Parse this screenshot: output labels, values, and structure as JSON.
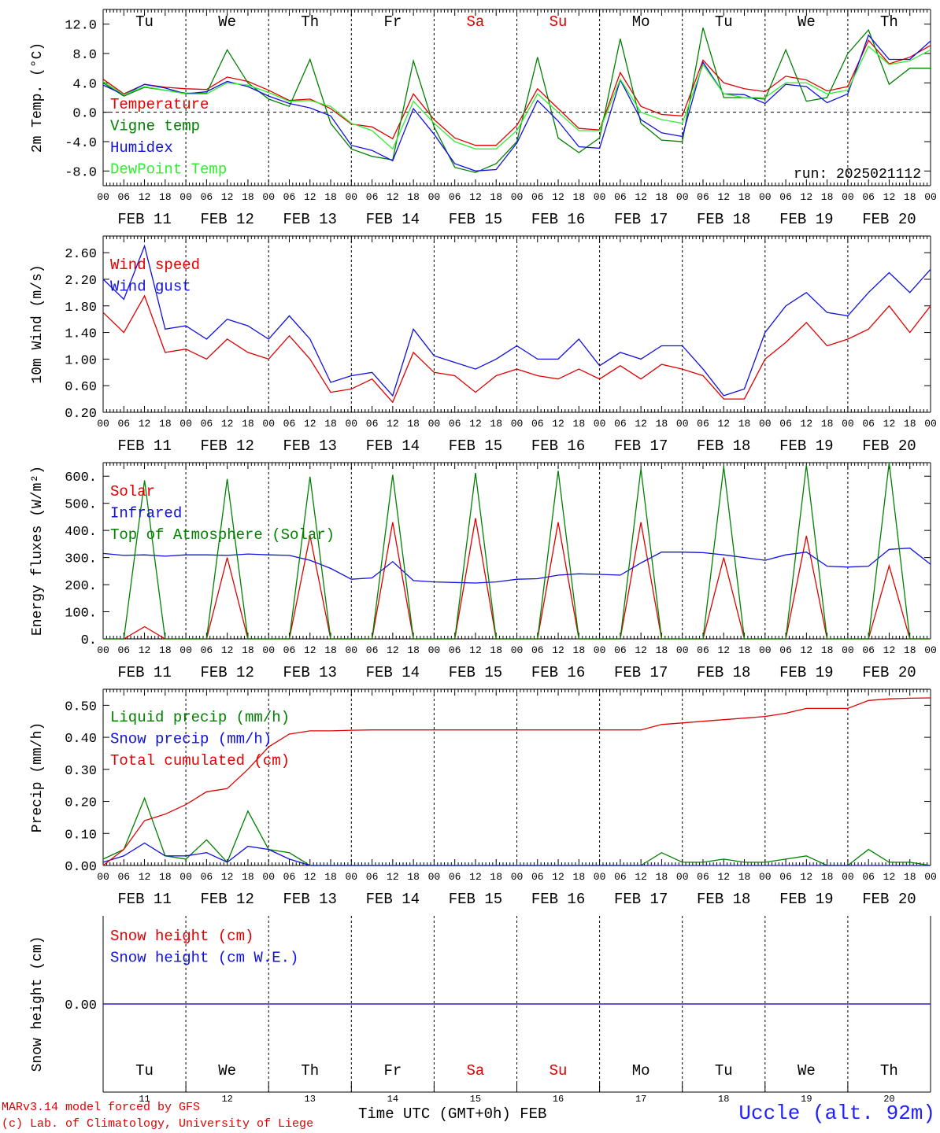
{
  "colors": {
    "red": "#e00000",
    "green": "#008000",
    "blue": "#1010e0",
    "light_green": "#30ee30",
    "black": "#000000",
    "station_blue": "#2020ff"
  },
  "run_label": "run: 2025021112",
  "weekdays": [
    {
      "label": "Tu",
      "weekend": false
    },
    {
      "label": "We",
      "weekend": false
    },
    {
      "label": "Th",
      "weekend": false
    },
    {
      "label": "Fr",
      "weekend": false
    },
    {
      "label": "Sa",
      "weekend": true
    },
    {
      "label": "Su",
      "weekend": true
    },
    {
      "label": "Mo",
      "weekend": false
    },
    {
      "label": "Tu",
      "weekend": false
    },
    {
      "label": "We",
      "weekend": false
    },
    {
      "label": "Th",
      "weekend": false
    }
  ],
  "hour_ticks": [
    "00",
    "06",
    "12",
    "18"
  ],
  "date_labels": [
    "FEB 11",
    "FEB 12",
    "FEB 13",
    "FEB 14",
    "FEB 15",
    "FEB 16",
    "FEB 17",
    "FEB 18",
    "FEB 19",
    "FEB 20"
  ],
  "day_numbers": [
    "11",
    "12",
    "13",
    "14",
    "15",
    "16",
    "17",
    "18",
    "19",
    "20"
  ],
  "footer": {
    "model_line": "MARv3.14 model forced by GFS",
    "copyright_line": "(c) Lab. of Climatology, University of Liege",
    "time_label": "Time UTC (GMT+0h) FEB",
    "station": "Uccle (alt. 92m)"
  },
  "chart_data": [
    {
      "type": "line",
      "ylabel": "2m Temp. (°C)",
      "ylim": [
        -10,
        14
      ],
      "yticks": [
        "12.0",
        "8.0",
        "4.0",
        "0.0",
        "-4.0",
        "-8.0"
      ],
      "ytick_values": [
        12,
        8,
        4,
        0,
        -4,
        -8
      ],
      "zero_line": true,
      "x_days": [
        0,
        0.25,
        0.5,
        0.75,
        1,
        1.25,
        1.5,
        1.75,
        2,
        2.25,
        2.5,
        2.75,
        3,
        3.25,
        3.5,
        3.75,
        4,
        4.25,
        4.5,
        4.75,
        5,
        5.25,
        5.5,
        5.75,
        6,
        6.25,
        6.5,
        6.75,
        7,
        7.25,
        7.5,
        7.75,
        8,
        8.25,
        8.5,
        8.75,
        9,
        9.25,
        9.5,
        9.75,
        10
      ],
      "series": [
        {
          "name": "Temperature",
          "color": "red",
          "values": [
            4.5,
            2.5,
            3.8,
            3.4,
            3.2,
            3.1,
            4.8,
            4.2,
            3.0,
            1.6,
            1.8,
            0.5,
            -1.6,
            -2.0,
            -3.6,
            2.5,
            -1.0,
            -3.5,
            -4.5,
            -4.5,
            -1.8,
            3.2,
            0.5,
            -2.2,
            -2.4,
            5.4,
            0.8,
            -0.3,
            -0.5,
            7.1,
            4.0,
            3.2,
            2.8,
            4.9,
            4.4,
            2.9,
            3.5,
            9.8,
            6.6,
            7.5,
            9.1
          ]
        },
        {
          "name": "Vigne temp",
          "color": "green",
          "values": [
            4.0,
            2.2,
            3.4,
            3.0,
            2.6,
            2.6,
            8.5,
            4.0,
            1.8,
            0.8,
            7.2,
            -1.5,
            -5.0,
            -6.0,
            -6.5,
            7.0,
            -2.0,
            -7.5,
            -8.2,
            -7.0,
            -4.0,
            7.5,
            -3.5,
            -5.5,
            -3.5,
            10.0,
            -1.5,
            -3.8,
            -4.0,
            11.5,
            2.0,
            2.0,
            1.8,
            8.5,
            1.5,
            2.0,
            8.0,
            11.2,
            3.8,
            6.0,
            6.0
          ]
        },
        {
          "name": "Humidex",
          "color": "blue",
          "values": [
            3.7,
            2.4,
            3.8,
            3.3,
            2.5,
            2.8,
            4.2,
            3.5,
            2.2,
            1.2,
            0.6,
            -0.5,
            -4.5,
            -5.2,
            -6.6,
            0.5,
            -3.0,
            -7.0,
            -8.0,
            -7.8,
            -4.2,
            1.6,
            -1.2,
            -4.7,
            -4.9,
            4.4,
            -1.0,
            -2.8,
            -3.3,
            6.8,
            2.5,
            2.4,
            1.2,
            3.8,
            3.5,
            1.3,
            2.5,
            10.5,
            7.2,
            7.2,
            9.7
          ]
        },
        {
          "name": "DewPoint Temp",
          "color": "light_green",
          "values": [
            4.2,
            2.4,
            3.5,
            3.0,
            2.5,
            2.5,
            4.0,
            3.7,
            2.7,
            1.5,
            1.6,
            0.8,
            -1.5,
            -2.5,
            -5.0,
            1.5,
            -1.5,
            -4.0,
            -5.0,
            -5.0,
            -2.5,
            2.5,
            0.0,
            -2.5,
            -2.5,
            4.5,
            0.0,
            -1.0,
            -1.5,
            6.5,
            2.5,
            2.0,
            2.0,
            4.0,
            4.0,
            2.5,
            3.0,
            9.0,
            6.5,
            7.0,
            8.5
          ]
        }
      ]
    },
    {
      "type": "line",
      "ylabel": "10m Wind (m/s)",
      "ylim": [
        0.2,
        2.85
      ],
      "yticks": [
        "2.60",
        "2.20",
        "1.80",
        "1.40",
        "1.00",
        "0.60",
        "0.20"
      ],
      "ytick_values": [
        2.6,
        2.2,
        1.8,
        1.4,
        1.0,
        0.6,
        0.2
      ],
      "x_days": [
        0,
        0.25,
        0.5,
        0.75,
        1,
        1.25,
        1.5,
        1.75,
        2,
        2.25,
        2.5,
        2.75,
        3,
        3.25,
        3.5,
        3.75,
        4,
        4.25,
        4.5,
        4.75,
        5,
        5.25,
        5.5,
        5.75,
        6,
        6.25,
        6.5,
        6.75,
        7,
        7.25,
        7.5,
        7.75,
        8,
        8.25,
        8.5,
        8.75,
        9,
        9.25,
        9.5,
        9.75,
        10
      ],
      "series": [
        {
          "name": "Wind speed",
          "color": "red",
          "values": [
            1.7,
            1.4,
            1.95,
            1.1,
            1.15,
            1.0,
            1.3,
            1.1,
            1.0,
            1.35,
            1.0,
            0.5,
            0.55,
            0.7,
            0.35,
            1.1,
            0.8,
            0.75,
            0.5,
            0.75,
            0.85,
            0.75,
            0.7,
            0.85,
            0.7,
            0.9,
            0.7,
            0.92,
            0.85,
            0.75,
            0.4,
            0.4,
            1.0,
            1.25,
            1.55,
            1.2,
            1.3,
            1.45,
            1.8,
            1.4,
            1.8
          ]
        },
        {
          "name": "Wind gust",
          "color": "blue",
          "values": [
            2.2,
            1.9,
            2.7,
            1.45,
            1.5,
            1.3,
            1.6,
            1.5,
            1.3,
            1.65,
            1.3,
            0.65,
            0.75,
            0.8,
            0.45,
            1.45,
            1.05,
            0.95,
            0.85,
            1.0,
            1.2,
            1.0,
            1.0,
            1.3,
            0.9,
            1.1,
            1.0,
            1.2,
            1.2,
            0.85,
            0.45,
            0.55,
            1.4,
            1.8,
            2.0,
            1.7,
            1.65,
            2.0,
            2.3,
            2.0,
            2.35
          ]
        }
      ]
    },
    {
      "type": "line",
      "ylabel": "Energy fluxes (W/m²)",
      "ylim": [
        0,
        650
      ],
      "yticks": [
        "600.",
        "500.",
        "400.",
        "300.",
        "200.",
        "100.",
        "0."
      ],
      "ytick_values": [
        600,
        500,
        400,
        300,
        200,
        100,
        0
      ],
      "x_days": [
        0,
        0.25,
        0.5,
        0.75,
        1,
        1.25,
        1.5,
        1.75,
        2,
        2.25,
        2.5,
        2.75,
        3,
        3.25,
        3.5,
        3.75,
        4,
        4.25,
        4.5,
        4.75,
        5,
        5.25,
        5.5,
        5.75,
        6,
        6.25,
        6.5,
        6.75,
        7,
        7.25,
        7.5,
        7.75,
        8,
        8.25,
        8.5,
        8.75,
        9,
        9.25,
        9.5,
        9.75,
        10
      ],
      "series": [
        {
          "name": "Solar",
          "color": "red",
          "values": [
            0,
            0,
            45,
            0,
            0,
            0,
            300,
            0,
            0,
            0,
            380,
            0,
            0,
            0,
            430,
            0,
            0,
            0,
            445,
            0,
            0,
            0,
            430,
            0,
            0,
            0,
            430,
            0,
            0,
            0,
            300,
            0,
            0,
            0,
            380,
            0,
            0,
            0,
            270,
            0,
            0
          ]
        },
        {
          "name": "Infrared",
          "color": "blue",
          "values": [
            315,
            308,
            310,
            305,
            310,
            310,
            308,
            313,
            310,
            308,
            290,
            260,
            220,
            225,
            285,
            215,
            210,
            208,
            206,
            210,
            220,
            222,
            235,
            240,
            238,
            235,
            280,
            320,
            320,
            318,
            310,
            300,
            290,
            310,
            320,
            268,
            265,
            268,
            330,
            335,
            275
          ]
        },
        {
          "name": "Top of Atmosphere (Solar)",
          "color": "green",
          "values": [
            0,
            0,
            585,
            0,
            0,
            0,
            590,
            0,
            0,
            0,
            598,
            0,
            0,
            0,
            605,
            0,
            0,
            0,
            612,
            0,
            0,
            0,
            620,
            0,
            0,
            0,
            627,
            0,
            0,
            0,
            635,
            0,
            0,
            0,
            642,
            0,
            0,
            0,
            650,
            0,
            0
          ]
        }
      ]
    },
    {
      "type": "line",
      "ylabel": "Precip (mm/h)",
      "ylim": [
        0,
        0.55
      ],
      "yticks": [
        "0.50",
        "0.40",
        "0.30",
        "0.20",
        "0.10",
        "0.00"
      ],
      "ytick_values": [
        0.5,
        0.4,
        0.3,
        0.2,
        0.1,
        0.0
      ],
      "x_days": [
        0,
        0.25,
        0.5,
        0.75,
        1,
        1.25,
        1.5,
        1.75,
        2,
        2.25,
        2.5,
        2.75,
        3,
        3.25,
        3.5,
        3.75,
        4,
        4.25,
        4.5,
        4.75,
        5,
        5.25,
        5.5,
        5.75,
        6,
        6.25,
        6.5,
        6.75,
        7,
        7.25,
        7.5,
        7.75,
        8,
        8.25,
        8.5,
        8.75,
        9,
        9.25,
        9.5,
        9.75,
        10
      ],
      "series": [
        {
          "name": "Liquid precip (mm/h)",
          "color": "green",
          "values": [
            0.02,
            0.05,
            0.21,
            0.03,
            0.02,
            0.08,
            0.01,
            0.17,
            0.05,
            0.04,
            0.0,
            0.0,
            0.0,
            0.0,
            0.0,
            0.0,
            0.0,
            0.0,
            0.0,
            0.0,
            0.0,
            0.0,
            0.0,
            0.0,
            0.0,
            0.0,
            0.0,
            0.04,
            0.01,
            0.01,
            0.02,
            0.01,
            0.01,
            0.02,
            0.03,
            0.0,
            0.0,
            0.05,
            0.01,
            0.01,
            0.0
          ]
        },
        {
          "name": "Snow precip (mm/h)",
          "color": "blue",
          "values": [
            0.01,
            0.03,
            0.07,
            0.03,
            0.03,
            0.04,
            0.01,
            0.06,
            0.05,
            0.02,
            0.0,
            0.0,
            0.0,
            0.0,
            0.0,
            0.0,
            0.0,
            0.0,
            0.0,
            0.0,
            0.0,
            0.0,
            0.0,
            0.0,
            0.0,
            0.0,
            0.0,
            0.0,
            0.0,
            0.0,
            0.0,
            0.0,
            0.0,
            0.0,
            0.0,
            0.0,
            0.0,
            0.0,
            0.0,
            0.0,
            0.0
          ]
        },
        {
          "name": "Total cumulated (cm)",
          "color": "red",
          "values": [
            0.0,
            0.05,
            0.14,
            0.16,
            0.19,
            0.23,
            0.24,
            0.3,
            0.37,
            0.41,
            0.42,
            0.42,
            0.422,
            0.423,
            0.423,
            0.423,
            0.423,
            0.423,
            0.423,
            0.423,
            0.423,
            0.423,
            0.423,
            0.423,
            0.423,
            0.423,
            0.423,
            0.44,
            0.445,
            0.45,
            0.455,
            0.46,
            0.465,
            0.475,
            0.49,
            0.49,
            0.49,
            0.515,
            0.52,
            0.522,
            0.523
          ]
        }
      ]
    },
    {
      "type": "line",
      "ylabel": "Snow height (cm)",
      "ylim": [
        -1,
        1
      ],
      "yticks": [
        "0.00"
      ],
      "ytick_values": [
        0
      ],
      "x_days": [
        0,
        10
      ],
      "series": [
        {
          "name": "Snow height (cm)",
          "color": "red",
          "values": [
            0,
            0
          ]
        },
        {
          "name": "Snow height (cm W.E.)",
          "color": "blue",
          "values": [
            0,
            0
          ]
        }
      ]
    }
  ]
}
